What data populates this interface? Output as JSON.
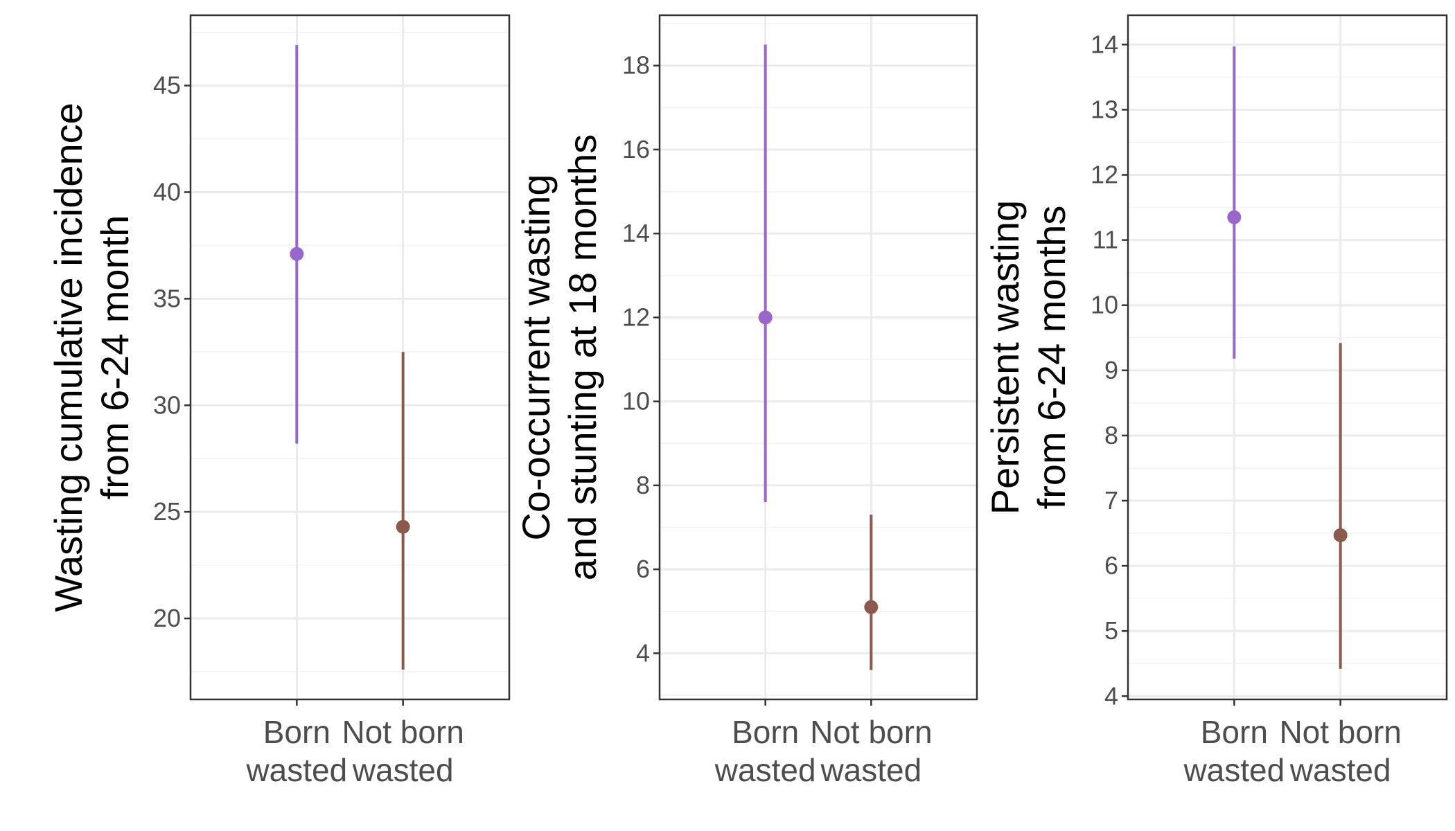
{
  "chart_data": [
    {
      "type": "pointrange",
      "xlabel": "",
      "ylabel_lines": [
        "Wasting cumulative incidence",
        "from 6-24 month"
      ],
      "categories": [
        [
          "Born",
          "wasted"
        ],
        [
          "Not born",
          "wasted"
        ]
      ],
      "points": [
        {
          "category": "Born wasted",
          "estimate": 37.1,
          "lower": 28.2,
          "upper": 46.9,
          "color": "#9966CC"
        },
        {
          "category": "Not born wasted",
          "estimate": 24.3,
          "lower": 17.6,
          "upper": 32.5,
          "color": "#8B5A4D"
        }
      ],
      "ylim": [
        16.2,
        48.3
      ],
      "yticks": [
        20,
        25,
        30,
        35,
        40,
        45
      ],
      "grid": true
    },
    {
      "type": "pointrange",
      "xlabel": "",
      "ylabel_lines": [
        "Co-occurrent wasting",
        "and stunting at 18 months"
      ],
      "categories": [
        [
          "Born",
          "wasted"
        ],
        [
          "Not born",
          "wasted"
        ]
      ],
      "points": [
        {
          "category": "Born wasted",
          "estimate": 12.0,
          "lower": 7.6,
          "upper": 18.5,
          "color": "#9966CC"
        },
        {
          "category": "Not born wasted",
          "estimate": 5.1,
          "lower": 3.6,
          "upper": 7.3,
          "color": "#8B5A4D"
        }
      ],
      "ylim": [
        2.9,
        19.2
      ],
      "yticks": [
        4,
        6,
        8,
        10,
        12,
        14,
        16,
        18
      ],
      "grid": true
    },
    {
      "type": "pointrange",
      "xlabel": "",
      "ylabel_lines": [
        "Persistent wasting",
        "from 6-24 months"
      ],
      "categories": [
        [
          "Born",
          "wasted"
        ],
        [
          "Not born",
          "wasted"
        ]
      ],
      "points": [
        {
          "category": "Born wasted",
          "estimate": 11.35,
          "lower": 9.18,
          "upper": 13.97,
          "color": "#9966CC"
        },
        {
          "category": "Not born wasted",
          "estimate": 6.47,
          "lower": 4.42,
          "upper": 9.42,
          "color": "#8B5A4D"
        }
      ],
      "ylim": [
        3.95,
        14.45
      ],
      "yticks": [
        4,
        5,
        6,
        7,
        8,
        9,
        10,
        11,
        12,
        13,
        14
      ],
      "grid": true
    }
  ]
}
